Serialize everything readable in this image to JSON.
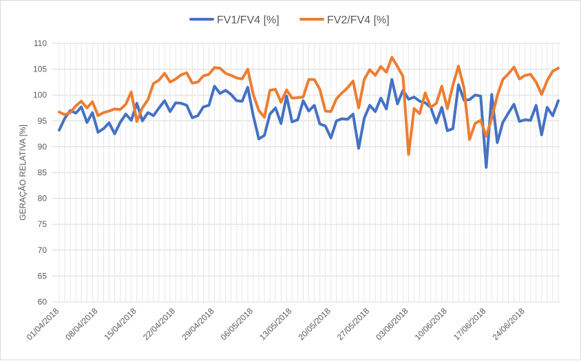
{
  "chart_data": {
    "type": "line",
    "ylabel": "GERAÇÃO RELATIVA [%]",
    "xlabel": "",
    "ylim": [
      60,
      110
    ],
    "ytick_step": 5,
    "grid": true,
    "legend_position": "top-center",
    "x": [
      "01/04/2018",
      "02/04/2018",
      "03/04/2018",
      "04/04/2018",
      "05/04/2018",
      "06/04/2018",
      "07/04/2018",
      "08/04/2018",
      "09/04/2018",
      "10/04/2018",
      "11/04/2018",
      "12/04/2018",
      "13/04/2018",
      "14/04/2018",
      "15/04/2018",
      "16/04/2018",
      "17/04/2018",
      "18/04/2018",
      "19/04/2018",
      "20/04/2018",
      "21/04/2018",
      "22/04/2018",
      "23/04/2018",
      "24/04/2018",
      "25/04/2018",
      "26/04/2018",
      "27/04/2018",
      "28/04/2018",
      "29/04/2018",
      "30/04/2018",
      "01/05/2018",
      "02/05/2018",
      "03/05/2018",
      "04/05/2018",
      "05/05/2018",
      "06/05/2018",
      "07/05/2018",
      "08/05/2018",
      "09/05/2018",
      "10/05/2018",
      "11/05/2018",
      "12/05/2018",
      "13/05/2018",
      "14/05/2018",
      "15/05/2018",
      "16/05/2018",
      "17/05/2018",
      "18/05/2018",
      "19/05/2018",
      "20/05/2018",
      "21/05/2018",
      "22/05/2018",
      "23/05/2018",
      "24/05/2018",
      "25/05/2018",
      "26/05/2018",
      "27/05/2018",
      "28/05/2018",
      "29/05/2018",
      "30/05/2018",
      "31/05/2018",
      "01/06/2018",
      "02/06/2018",
      "03/06/2018",
      "04/06/2018",
      "05/06/2018",
      "06/06/2018",
      "07/06/2018",
      "08/06/2018",
      "09/06/2018",
      "10/06/2018",
      "11/06/2018",
      "12/06/2018",
      "13/06/2018",
      "14/06/2018",
      "15/06/2018",
      "16/06/2018",
      "17/06/2018",
      "18/06/2018",
      "19/06/2018",
      "20/06/2018",
      "21/06/2018",
      "22/06/2018",
      "23/06/2018",
      "24/06/2018",
      "25/06/2018",
      "26/06/2018",
      "27/06/2018",
      "28/06/2018",
      "29/06/2018",
      "30/06/2018"
    ],
    "xtick_labels": [
      "01/04/2018",
      "08/04/2018",
      "15/04/2018",
      "22/04/2018",
      "29/04/2018",
      "06/05/2018",
      "13/05/2018",
      "20/05/2018",
      "27/05/2018",
      "03/06/2018",
      "10/06/2018",
      "17/06/2018",
      "24/06/2018"
    ],
    "series": [
      {
        "name": "FV1/FV4 [%]",
        "color": "#4472c4",
        "values": [
          93.2,
          95.5,
          97,
          96.5,
          97.7,
          94.7,
          96.6,
          92.8,
          93.5,
          94.6,
          92.5,
          94.7,
          96.3,
          95.1,
          98.4,
          95,
          96.6,
          96,
          97.5,
          98.9,
          96.8,
          98.5,
          98.4,
          98,
          95.6,
          96,
          97.7,
          98,
          101.7,
          100.3,
          100.9,
          100.1,
          98.9,
          98.8,
          101.5,
          96,
          91.5,
          92.2,
          96.3,
          97.5,
          94.5,
          99.8,
          94.8,
          95.2,
          98.9,
          96.9,
          98,
          94.4,
          94,
          91.7,
          95,
          95.4,
          95.3,
          96.3,
          89.7,
          95.5,
          98,
          96.8,
          99.4,
          97.3,
          103,
          98.3,
          100.9,
          99.2,
          99.6,
          98.8,
          98.5,
          97.6,
          94.6,
          97.6,
          93.1,
          93.5,
          102,
          99,
          99.1,
          100,
          99.8,
          86,
          100.1,
          90.8,
          94.7,
          96.5,
          98.2,
          94.9,
          95.2,
          95.1,
          98,
          92.3,
          97.6,
          96,
          98.9
        ]
      },
      {
        "name": "FV2/FV4 [%]",
        "color": "#ed7d31",
        "values": [
          96.7,
          96.2,
          96.6,
          97.9,
          98.8,
          97.5,
          98.7,
          96,
          96.6,
          96.9,
          97.3,
          97.2,
          98.2,
          100.6,
          94.9,
          97.5,
          99.1,
          102.2,
          102.9,
          104.2,
          102.5,
          103.1,
          103.9,
          104.3,
          102.3,
          102.5,
          103.7,
          104,
          105.3,
          105.2,
          104.2,
          103.8,
          103.3,
          103.1,
          105,
          100.1,
          97,
          95.7,
          100.9,
          101.1,
          98.6,
          101,
          99.4,
          99.5,
          99.6,
          103,
          103,
          101.1,
          96.9,
          96.8,
          99.3,
          100.4,
          101.4,
          102.7,
          97.5,
          103,
          104.9,
          103.8,
          105.5,
          104.4,
          107.3,
          105.5,
          103.6,
          88.5,
          97.4,
          96.4,
          100.4,
          97.6,
          98.4,
          101.7,
          97.4,
          101.9,
          105.6,
          101.3,
          91.4,
          94.5,
          95.1,
          92,
          95.5,
          99.9,
          103,
          104.1,
          105.4,
          103.1,
          103.8,
          104,
          102.5,
          100.1,
          102.8,
          104.6,
          105.2
        ]
      }
    ]
  }
}
